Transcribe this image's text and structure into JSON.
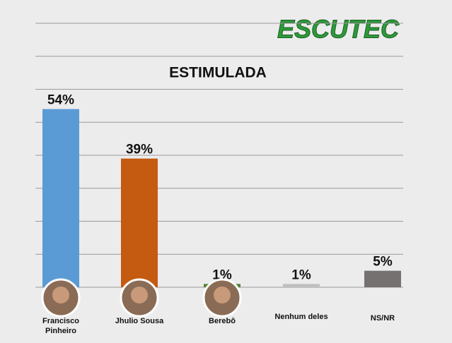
{
  "chart_data": {
    "type": "bar",
    "title": "ESTIMULADA",
    "logo": "ESCUTEC",
    "categories": [
      "Francisco Pinheiro",
      "Jhulio Sousa",
      "Berebô",
      "Nenhum deles",
      "NS/NR"
    ],
    "values": [
      54,
      39,
      1,
      1,
      5
    ],
    "value_labels": [
      "54%",
      "39%",
      "1%",
      "1%",
      "5%"
    ],
    "colors": [
      "#5b9bd5",
      "#c55a11",
      "#548235",
      "#bfbfbf",
      "#767171"
    ],
    "ylim": [
      0,
      80
    ],
    "yticks": [
      0,
      10,
      20,
      30,
      40,
      50,
      60,
      70,
      80
    ],
    "grid": true
  }
}
